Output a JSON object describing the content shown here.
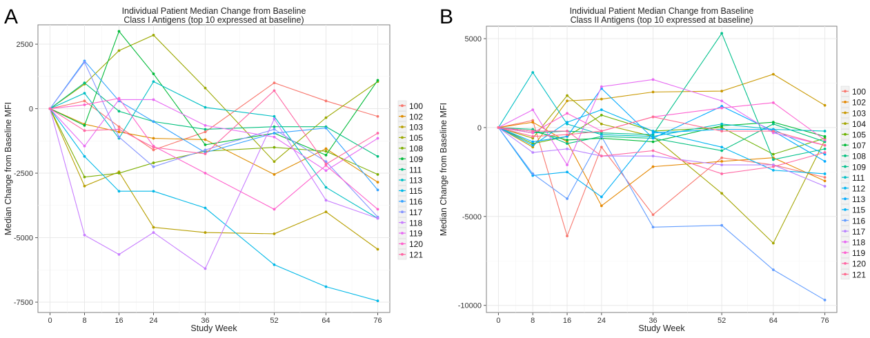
{
  "chart_data": [
    {
      "panel_letter": "A",
      "type": "line",
      "title": [
        "Individual Patient Median Change from Baseline",
        "Class I Antigens (top 10 expressed at baseline)"
      ],
      "xlabel": "Study Week",
      "ylabel": "Median Change from Baseline MFI",
      "x": [
        0,
        8,
        16,
        24,
        36,
        52,
        64,
        76
      ],
      "x_ticks": [
        0,
        8,
        16,
        24,
        36,
        52,
        64,
        76
      ],
      "y_ticks": [
        -7500,
        -5000,
        -2500,
        0,
        2500
      ],
      "ylim": [
        -7900,
        3250
      ],
      "grid": true,
      "legend_position": "right",
      "series": [
        {
          "name": "100",
          "color": "#F8766D",
          "values": [
            0,
            300,
            -700,
            -1600,
            -900,
            1000,
            300,
            -300
          ]
        },
        {
          "name": "102",
          "color": "#DE8C00",
          "values": [
            0,
            -600,
            -900,
            -1150,
            -1200,
            -2550,
            -1550,
            -2850
          ]
        },
        {
          "name": "103",
          "color": "#B79F00",
          "values": [
            0,
            -3000,
            -2450,
            -4600,
            -4800,
            -4850,
            -4000,
            -5450
          ]
        },
        {
          "name": "105",
          "color": "#9BA800",
          "values": [
            0,
            950,
            2250,
            2850,
            800,
            -2050,
            -350,
            1050
          ]
        },
        {
          "name": "108",
          "color": "#7CAE00",
          "values": [
            0,
            -2650,
            -2500,
            -2100,
            -1650,
            -1500,
            -1650,
            -2550
          ]
        },
        {
          "name": "109",
          "color": "#00BA38",
          "values": [
            0,
            -650,
            3000,
            1350,
            -1400,
            -950,
            -1800,
            1100
          ]
        },
        {
          "name": "111",
          "color": "#00BF7D",
          "values": [
            0,
            1000,
            -100,
            -500,
            -800,
            -700,
            -700,
            -1850
          ]
        },
        {
          "name": "113",
          "color": "#00BFC4",
          "values": [
            0,
            600,
            -1150,
            1050,
            50,
            -300,
            -3050,
            -4250
          ]
        },
        {
          "name": "115",
          "color": "#00B8E7",
          "values": [
            0,
            -1850,
            -3200,
            -3200,
            -3850,
            -6050,
            -6900,
            -7450
          ]
        },
        {
          "name": "116",
          "color": "#35A2FF",
          "values": [
            0,
            1850,
            300,
            -500,
            -1700,
            -950,
            -750,
            -3150
          ]
        },
        {
          "name": "117",
          "color": "#8494FF",
          "values": [
            0,
            1800,
            -1100,
            -2250,
            -1600,
            -800,
            -2050,
            -4200
          ]
        },
        {
          "name": "118",
          "color": "#C77CFF",
          "values": [
            0,
            -4900,
            -5650,
            -4800,
            -6200,
            -400,
            -3550,
            -4250
          ]
        },
        {
          "name": "119",
          "color": "#E76BF3",
          "values": [
            0,
            -1450,
            350,
            350,
            -650,
            -1100,
            -2400,
            -1150
          ]
        },
        {
          "name": "120",
          "color": "#FF61CC",
          "values": [
            0,
            150,
            400,
            -1450,
            -2500,
            -3900,
            -2200,
            -3900
          ]
        },
        {
          "name": "121",
          "color": "#FF67A4",
          "values": [
            0,
            -850,
            -800,
            -1500,
            -1750,
            700,
            -2150,
            -950
          ]
        }
      ]
    },
    {
      "panel_letter": "B",
      "type": "line",
      "title": [
        "Individual Patient Median Change from Baseline",
        "Class II Antigens (top 10 expressed at baseline)"
      ],
      "xlabel": "Study Week",
      "ylabel": "Median Change from Baseline MFI",
      "x": [
        0,
        8,
        16,
        24,
        36,
        52,
        64,
        76
      ],
      "x_ticks": [
        0,
        8,
        16,
        24,
        36,
        52,
        64,
        76
      ],
      "y_ticks": [
        -10000,
        -5000,
        0,
        5000
      ],
      "ylim": [
        -10400,
        5700
      ],
      "grid": true,
      "legend_position": "right",
      "series": [
        {
          "name": "100",
          "color": "#F8766D",
          "values": [
            0,
            400,
            -6100,
            -1100,
            -4900,
            -1700,
            -2100,
            -2800
          ]
        },
        {
          "name": "102",
          "color": "#E58700",
          "values": [
            0,
            300,
            -800,
            -4400,
            -2200,
            -1900,
            -1700,
            -3000
          ]
        },
        {
          "name": "103",
          "color": "#C99800",
          "values": [
            0,
            -1100,
            1500,
            1600,
            2000,
            2050,
            3000,
            1250
          ]
        },
        {
          "name": "104",
          "color": "#A3A500",
          "values": [
            0,
            -600,
            1800,
            200,
            -500,
            -3700,
            -6500,
            -700
          ]
        },
        {
          "name": "105",
          "color": "#6BB100",
          "values": [
            0,
            -900,
            -500,
            700,
            -200,
            0,
            -1500,
            -600
          ]
        },
        {
          "name": "107",
          "color": "#00BA38",
          "values": [
            0,
            -200,
            -700,
            -600,
            -800,
            100,
            300,
            -500
          ]
        },
        {
          "name": "108",
          "color": "#00BF7D",
          "values": [
            0,
            -100,
            -900,
            -500,
            -600,
            -1300,
            200,
            -800
          ]
        },
        {
          "name": "109",
          "color": "#00C08B",
          "values": [
            0,
            -300,
            -200,
            -300,
            -400,
            5300,
            -1800,
            -1200
          ]
        },
        {
          "name": "111",
          "color": "#00BFC4",
          "values": [
            0,
            3100,
            200,
            -400,
            -500,
            200,
            -100,
            -200
          ]
        },
        {
          "name": "112",
          "color": "#00B4F0",
          "values": [
            0,
            -1000,
            300,
            1000,
            -200,
            -1100,
            -2400,
            -2600
          ]
        },
        {
          "name": "113",
          "color": "#00A9FF",
          "values": [
            0,
            -800,
            -500,
            2200,
            -600,
            1200,
            -200,
            -1900
          ]
        },
        {
          "name": "115",
          "color": "#00B0F6",
          "values": [
            0,
            -2700,
            -2500,
            -3900,
            -300,
            -100,
            -100,
            -1500
          ]
        },
        {
          "name": "116",
          "color": "#619CFF",
          "values": [
            0,
            -2600,
            -4000,
            -500,
            -5600,
            -5500,
            -8000,
            -9700
          ]
        },
        {
          "name": "117",
          "color": "#B983FF",
          "values": [
            0,
            -1400,
            -1200,
            -1600,
            -1600,
            -2100,
            -2100,
            -3300
          ]
        },
        {
          "name": "118",
          "color": "#E76BF3",
          "values": [
            0,
            1000,
            -2100,
            2300,
            2700,
            1500,
            -300,
            -1000
          ]
        },
        {
          "name": "119",
          "color": "#FD61D1",
          "values": [
            0,
            -300,
            800,
            -200,
            600,
            1100,
            1400,
            -700
          ]
        },
        {
          "name": "120",
          "color": "#FF67A4",
          "values": [
            0,
            -200,
            -200,
            -1600,
            -1300,
            -2600,
            -2200,
            -1400
          ]
        },
        {
          "name": "121",
          "color": "#FF6C91",
          "values": [
            0,
            -500,
            -400,
            -200,
            600,
            -200,
            -200,
            -1000
          ]
        }
      ]
    }
  ]
}
